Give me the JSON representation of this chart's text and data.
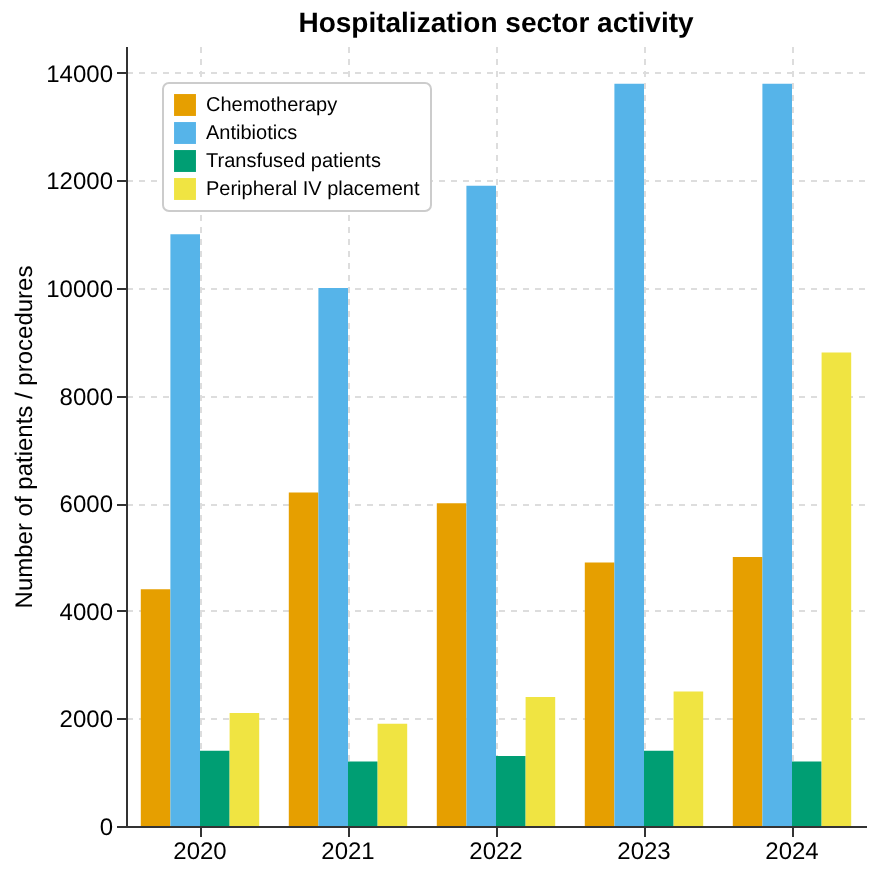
{
  "chart_data": {
    "type": "bar",
    "title": "Hospitalization sector activity",
    "ylabel": "Number of patients / procedures",
    "categories": [
      "2020",
      "2021",
      "2022",
      "2023",
      "2024"
    ],
    "series": [
      {
        "name": "Chemotherapy",
        "color": "#e69f00",
        "values": [
          4400,
          6200,
          6000,
          4900,
          5000
        ]
      },
      {
        "name": "Antibiotics",
        "color": "#56b4e9",
        "values": [
          11000,
          10000,
          11900,
          13800,
          13800
        ]
      },
      {
        "name": "Transfused patients",
        "color": "#009e73",
        "values": [
          1400,
          1200,
          1300,
          1400,
          1200
        ]
      },
      {
        "name": "Peripheral IV placement",
        "color": "#f0e442",
        "values": [
          2100,
          1900,
          2400,
          2500,
          8800
        ]
      }
    ],
    "ylim": [
      0,
      14500
    ],
    "yticks": [
      0,
      2000,
      4000,
      6000,
      8000,
      10000,
      12000,
      14000
    ],
    "grid": true,
    "legend": "top left"
  }
}
